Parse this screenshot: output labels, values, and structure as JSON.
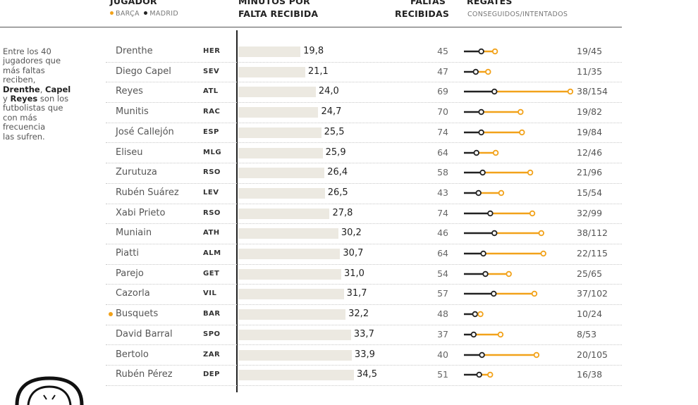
{
  "colors": {
    "barca": "#f2a21a",
    "madrid": "#222222",
    "bar_fill": "#ece9e1",
    "attempt_line": "#f2a21a",
    "success_line": "#222222"
  },
  "headers": {
    "jugador": "JUGADOR",
    "barca_legend": "BARÇA",
    "madrid_legend": "MADRID",
    "minutos_line1": "MINUTOS POR",
    "minutos_line2": "FALTA RECIBIDA",
    "faltas_line1": "FALTAS",
    "faltas_line2": "RECIBIDAS",
    "regates": "REGATES",
    "regates_sub": "CONSEGUIDOS/INTENTADOS"
  },
  "intro": {
    "line1": "Entre los 40",
    "line2": "jugadores que",
    "line3": "más faltas",
    "line4": "reciben,",
    "name1": "Drenthe",
    "sep1": ", ",
    "name2": "Capel",
    "line6a": "y ",
    "name3": "Reyes",
    "line6b": " son los",
    "line7": "futbolistas que",
    "line8": "con más",
    "line9": "frecuencia",
    "line10": "las sufren."
  },
  "chart_data": {
    "type": "table",
    "columns": [
      "JUGADOR",
      "MINUTOS POR FALTA RECIBIDA",
      "FALTAS RECIBIDAS",
      "REGATES CONSEGUIDOS/INTENTADOS"
    ],
    "rows": [
      {
        "name": "Drenthe",
        "team": "HER",
        "minutes": 19.8,
        "minutes_label": "19,8",
        "fouls": 45,
        "dribbles_success": 19,
        "dribbles_attempted": 45,
        "dribbles_label": "19/45",
        "club": ""
      },
      {
        "name": "Diego Capel",
        "team": "SEV",
        "minutes": 21.1,
        "minutes_label": "21,1",
        "fouls": 47,
        "dribbles_success": 11,
        "dribbles_attempted": 35,
        "dribbles_label": "11/35",
        "club": ""
      },
      {
        "name": "Reyes",
        "team": "ATL",
        "minutes": 24.0,
        "minutes_label": "24,0",
        "fouls": 69,
        "dribbles_success": 38,
        "dribbles_attempted": 154,
        "dribbles_label": "38/154",
        "club": ""
      },
      {
        "name": "Munitis",
        "team": "RAC",
        "minutes": 24.7,
        "minutes_label": "24,7",
        "fouls": 70,
        "dribbles_success": 19,
        "dribbles_attempted": 82,
        "dribbles_label": "19/82",
        "club": ""
      },
      {
        "name": "José Callejón",
        "team": "ESP",
        "minutes": 25.5,
        "minutes_label": "25,5",
        "fouls": 74,
        "dribbles_success": 19,
        "dribbles_attempted": 84,
        "dribbles_label": "19/84",
        "club": ""
      },
      {
        "name": "Eliseu",
        "team": "MLG",
        "minutes": 25.9,
        "minutes_label": "25,9",
        "fouls": 64,
        "dribbles_success": 12,
        "dribbles_attempted": 46,
        "dribbles_label": "12/46",
        "club": ""
      },
      {
        "name": "Zurutuza",
        "team": "RSO",
        "minutes": 26.4,
        "minutes_label": "26,4",
        "fouls": 58,
        "dribbles_success": 21,
        "dribbles_attempted": 96,
        "dribbles_label": "21/96",
        "club": ""
      },
      {
        "name": "Rubén Suárez",
        "team": "LEV",
        "minutes": 26.5,
        "minutes_label": "26,5",
        "fouls": 43,
        "dribbles_success": 15,
        "dribbles_attempted": 54,
        "dribbles_label": "15/54",
        "club": ""
      },
      {
        "name": "Xabi Prieto",
        "team": "RSO",
        "minutes": 27.8,
        "minutes_label": "27,8",
        "fouls": 74,
        "dribbles_success": 32,
        "dribbles_attempted": 99,
        "dribbles_label": "32/99",
        "club": ""
      },
      {
        "name": "Muniain",
        "team": "ATH",
        "minutes": 30.2,
        "minutes_label": "30,2",
        "fouls": 46,
        "dribbles_success": 38,
        "dribbles_attempted": 112,
        "dribbles_label": "38/112",
        "club": ""
      },
      {
        "name": "Piatti",
        "team": "ALM",
        "minutes": 30.7,
        "minutes_label": "30,7",
        "fouls": 64,
        "dribbles_success": 22,
        "dribbles_attempted": 115,
        "dribbles_label": "22/115",
        "club": ""
      },
      {
        "name": "Parejo",
        "team": "GET",
        "minutes": 31.0,
        "minutes_label": "31,0",
        "fouls": 54,
        "dribbles_success": 25,
        "dribbles_attempted": 65,
        "dribbles_label": "25/65",
        "club": ""
      },
      {
        "name": "Cazorla",
        "team": "VIL",
        "minutes": 31.7,
        "minutes_label": "31,7",
        "fouls": 57,
        "dribbles_success": 37,
        "dribbles_attempted": 102,
        "dribbles_label": "37/102",
        "club": ""
      },
      {
        "name": "Busquets",
        "team": "BAR",
        "minutes": 32.2,
        "minutes_label": "32,2",
        "fouls": 48,
        "dribbles_success": 10,
        "dribbles_attempted": 24,
        "dribbles_label": "10/24",
        "club": "barca"
      },
      {
        "name": "David Barral",
        "team": "SPO",
        "minutes": 33.7,
        "minutes_label": "33,7",
        "fouls": 37,
        "dribbles_success": 8,
        "dribbles_attempted": 53,
        "dribbles_label": "8/53",
        "club": ""
      },
      {
        "name": "Bertolo",
        "team": "ZAR",
        "minutes": 33.9,
        "minutes_label": "33,9",
        "fouls": 40,
        "dribbles_success": 20,
        "dribbles_attempted": 105,
        "dribbles_label": "20/105",
        "club": ""
      },
      {
        "name": "Rubén Pérez",
        "team": "DEP",
        "minutes": 34.5,
        "minutes_label": "34,5",
        "fouls": 51,
        "dribbles_success": 16,
        "dribbles_attempted": 38,
        "dribbles_label": "16/38",
        "club": ""
      }
    ]
  }
}
